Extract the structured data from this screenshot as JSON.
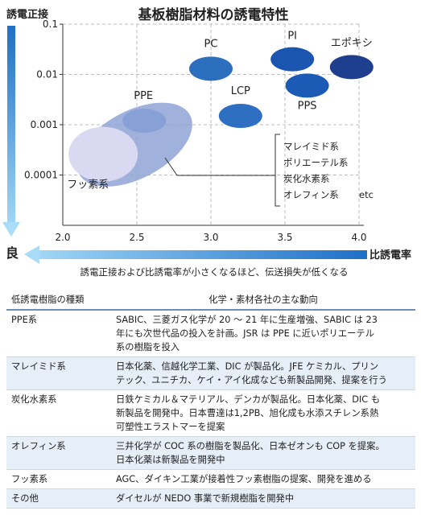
{
  "chart_data": {
    "type": "scatter",
    "title": "基板樹脂材料の誘電特性",
    "xlabel": "比誘電率",
    "ylabel": "誘電正接",
    "better_label": "良",
    "caption": "誘電正接および比誘電率が小さくなるほど、伝送損失が低くなる",
    "x_ticks": [
      "2.0",
      "2.5",
      "3.0",
      "3.5",
      "4.0"
    ],
    "y_ticks": [
      "0.1",
      "0.01",
      "0.001",
      "0.0001"
    ],
    "xlim": [
      2.0,
      4.0
    ],
    "ylim": [
      1e-05,
      0.1
    ],
    "y_scale": "log",
    "grid": true,
    "series": [
      {
        "name": "PC",
        "x": 3.0,
        "y": 0.013,
        "color": "#2d6fbf"
      },
      {
        "name": "PI",
        "x": 3.55,
        "y": 0.02,
        "color": "#1a56b0"
      },
      {
        "name": "エポキシ",
        "x": 3.95,
        "y": 0.014,
        "color": "#1e3f8e"
      },
      {
        "name": "PPS",
        "x": 3.65,
        "y": 0.006,
        "color": "#1b5bb5"
      },
      {
        "name": "LCP",
        "x": 3.2,
        "y": 0.0015,
        "color": "#2e6fc2"
      },
      {
        "name": "PPE",
        "x": 2.55,
        "y": 0.0012,
        "color": "#5a8fd0"
      },
      {
        "name": "フッ素系",
        "x": 2.3,
        "y": 0.0003,
        "color": "#cfd0ee"
      }
    ],
    "bracket_items": [
      "マレイミド系",
      "ポリエーテル系",
      "炭化水素系",
      "オレフィン系"
    ],
    "bracket_note": "etc"
  },
  "table": {
    "header": [
      "低誘電樹脂の種類",
      "化学・素材各社の主な動向"
    ],
    "rows": [
      {
        "cat": "PPE系",
        "lines": [
          "SABIC、三菱ガス化学が 20 ～ 21 年に生産増強、SABIC は 23",
          "年にも次世代品の投入を計画。JSR は PPE に近いポリエーテル",
          "系の樹脂を投入"
        ]
      },
      {
        "cat": "マレイミド系",
        "lines": [
          "日本化薬、信越化学工業、DIC が製品化。JFE ケミカル、プリン",
          "テック、ユニチカ、ケイ・アイ化成なども新製品開発、提案を行う"
        ]
      },
      {
        "cat": "炭化水素系",
        "lines": [
          "日鉄ケミカル＆マテリアル、デンカが製品化。日本化薬、DIC も",
          "新製品を開発中。日本曹達は1,2PB、旭化成も水添スチレン系熱",
          "可塑性エラストマーを提案"
        ]
      },
      {
        "cat": "オレフィン系",
        "lines": [
          "三井化学が COC 系の樹脂を製品化、日本ゼオンも COP を提案。",
          "日本化薬は新製品を開発中"
        ]
      },
      {
        "cat": "フッ素系",
        "lines": [
          "AGC、ダイキン工業が接着性フッ素樹脂の提案、開発を進める"
        ]
      },
      {
        "cat": "その他",
        "lines": [
          "ダイセルが NEDO 事業で新規樹脂を開発中"
        ]
      }
    ]
  }
}
